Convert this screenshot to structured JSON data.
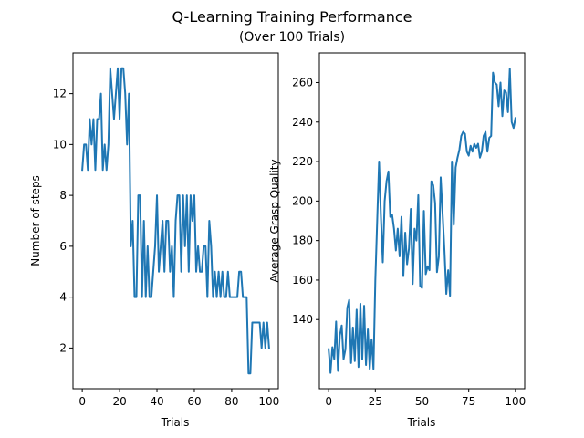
{
  "figure": {
    "title": "Q-Learning Training Performance",
    "subtitle": "(Over 100 Trials)"
  },
  "chart_data": [
    {
      "type": "line",
      "title": "",
      "xlabel": "Trials",
      "ylabel": "Number of steps",
      "xlim": [
        -4.95,
        104.95
      ],
      "ylim": [
        0.4,
        13.6
      ],
      "xticks": [
        0,
        20,
        40,
        60,
        80,
        100
      ],
      "yticks": [
        2,
        4,
        6,
        8,
        10,
        12
      ],
      "grid": false,
      "color": "#1f77b4",
      "series": [
        {
          "x": [
            0,
            1,
            2,
            3,
            4,
            5,
            6,
            7,
            8,
            9,
            10,
            11,
            12,
            13,
            14,
            15,
            16,
            17,
            18,
            19,
            20,
            21,
            22,
            23,
            24,
            25,
            26,
            27,
            28,
            29,
            30,
            31,
            32,
            33,
            34,
            35,
            36,
            37,
            38,
            39,
            40,
            41,
            42,
            43,
            44,
            45,
            46,
            47,
            48,
            49,
            50,
            51,
            52,
            53,
            54,
            55,
            56,
            57,
            58,
            59,
            60,
            61,
            62,
            63,
            64,
            65,
            66,
            67,
            68,
            69,
            70,
            71,
            72,
            73,
            74,
            75,
            76,
            77,
            78,
            79,
            80,
            81,
            82,
            83,
            84,
            85,
            86,
            87,
            88,
            89,
            90,
            91,
            92,
            93,
            94,
            95,
            96,
            97,
            98,
            99,
            100
          ],
          "values": [
            9,
            10,
            10,
            9,
            11,
            10,
            11,
            9,
            11,
            11,
            12,
            9,
            10,
            9,
            10,
            13,
            12,
            11,
            12,
            13,
            11,
            13,
            13,
            12,
            10,
            12,
            6,
            7,
            4,
            4,
            8,
            8,
            4,
            7,
            4,
            6,
            4,
            4,
            5,
            6,
            8,
            5,
            6,
            7,
            5,
            7,
            7,
            5,
            6,
            4,
            7,
            8,
            8,
            5,
            8,
            6,
            8,
            5,
            8,
            7,
            8,
            5,
            6,
            5,
            5,
            6,
            6,
            4,
            7,
            6,
            4,
            5,
            4,
            5,
            4,
            5,
            4,
            4,
            5,
            4,
            4,
            4,
            4,
            4,
            5,
            5,
            4,
            4,
            4,
            1,
            1,
            3,
            3,
            3,
            3,
            3,
            2,
            3,
            2,
            3,
            2
          ]
        }
      ]
    },
    {
      "type": "line",
      "title": "",
      "xlabel": "Trials",
      "ylabel": "Average Grasp Quality",
      "xlim": [
        -4.95,
        104.95
      ],
      "ylim": [
        105,
        275
      ],
      "xticks": [
        0,
        25,
        50,
        75,
        100
      ],
      "yticks": [
        140,
        160,
        180,
        200,
        220,
        240,
        260
      ],
      "grid": false,
      "color": "#1f77b4",
      "series": [
        {
          "x": [
            0,
            1,
            2,
            3,
            4,
            5,
            6,
            7,
            8,
            9,
            10,
            11,
            12,
            13,
            14,
            15,
            16,
            17,
            18,
            19,
            20,
            21,
            22,
            23,
            24,
            25,
            26,
            27,
            28,
            29,
            30,
            31,
            32,
            33,
            34,
            35,
            36,
            37,
            38,
            39,
            40,
            41,
            42,
            43,
            44,
            45,
            46,
            47,
            48,
            49,
            50,
            51,
            52,
            53,
            54,
            55,
            56,
            57,
            58,
            59,
            60,
            61,
            62,
            63,
            64,
            65,
            66,
            67,
            68,
            69,
            70,
            71,
            72,
            73,
            74,
            75,
            76,
            77,
            78,
            79,
            80,
            81,
            82,
            83,
            84,
            85,
            86,
            87,
            88,
            89,
            90,
            91,
            92,
            93,
            94,
            95,
            96,
            97,
            98,
            99,
            100
          ],
          "values": [
            125,
            113,
            126,
            120,
            139,
            114,
            132,
            137,
            120,
            125,
            146,
            150,
            118,
            136,
            119,
            145,
            116,
            148,
            120,
            147,
            117,
            135,
            115,
            130,
            115,
            160,
            190,
            220,
            192,
            169,
            200,
            210,
            215,
            192,
            193,
            186,
            175,
            186,
            172,
            192,
            162,
            184,
            168,
            176,
            196,
            158,
            186,
            180,
            203,
            157,
            156,
            195,
            163,
            167,
            165,
            210,
            208,
            199,
            164,
            172,
            212,
            194,
            175,
            153,
            165,
            152,
            220,
            188,
            217,
            222,
            226,
            233,
            235,
            234,
            225,
            223,
            228,
            225,
            229,
            227,
            229,
            222,
            225,
            233,
            235,
            225,
            232,
            233,
            265,
            260,
            259,
            248,
            260,
            243,
            256,
            255,
            245,
            267,
            240,
            237,
            242
          ]
        }
      ]
    }
  ]
}
